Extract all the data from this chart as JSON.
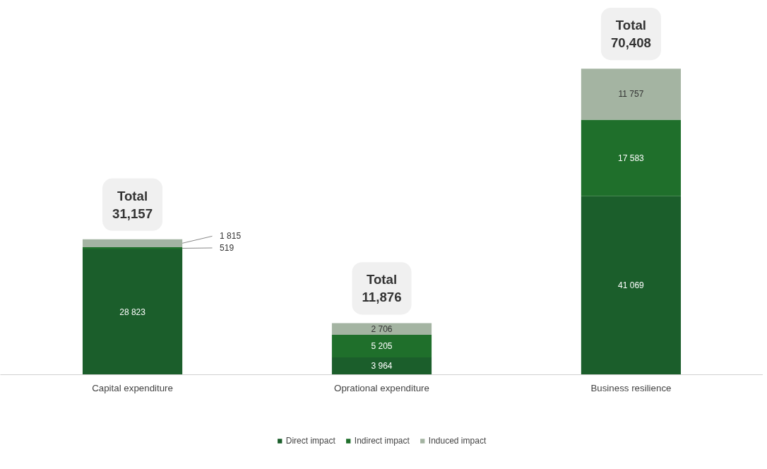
{
  "chart_data": {
    "type": "bar",
    "stacked": true,
    "categories": [
      "Capital expenditure",
      "Oprational expenditure",
      "Business resilience"
    ],
    "series": [
      {
        "name": "Direct impact",
        "color": "#1b5e2b",
        "values": [
          28823,
          3964,
          41069
        ],
        "value_labels": [
          "28 823",
          "3 964",
          "41 069"
        ]
      },
      {
        "name": "Indirect impact",
        "color": "#1f6f2b",
        "values": [
          519,
          5205,
          17583
        ],
        "value_labels": [
          "519",
          "5 205",
          "17 583"
        ]
      },
      {
        "name": "Induced impact",
        "color": "#a4b4a2",
        "values": [
          1815,
          2706,
          11757
        ],
        "value_labels": [
          "1 815",
          "2 706",
          "11 757"
        ]
      }
    ],
    "totals": [
      "Total\n31,157",
      "Total\n11,876",
      "Total\n70,408"
    ],
    "legend": "bottom",
    "grid": false
  }
}
